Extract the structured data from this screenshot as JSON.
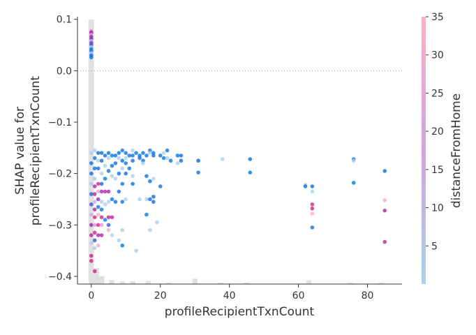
{
  "chart_data": {
    "type": "scatter",
    "title": "",
    "xlabel": "profileRecipientTxnCount",
    "ylabel_lines": [
      "SHAP value for",
      "profileRecipientTxnCount"
    ],
    "xlim": [
      -4,
      90
    ],
    "ylim": [
      -0.415,
      0.105
    ],
    "x_ticks": [
      0,
      20,
      40,
      60,
      80
    ],
    "y_ticks": [
      0.1,
      0.0,
      -0.1,
      -0.2,
      -0.3,
      -0.4
    ],
    "y_tick_labels": [
      "0.1",
      "0.0",
      "−0.1",
      "−0.2",
      "−0.3",
      "−0.4"
    ],
    "zero_line": 0.0,
    "color_feature": "distanceFromHome",
    "colorbar": {
      "label": "distanceFromHome",
      "range": [
        0,
        35
      ],
      "ticks": [
        5,
        10,
        15,
        20,
        25,
        30,
        35
      ],
      "colors": [
        "#a6d2f0",
        "#d3a2e0",
        "#ffb0c8"
      ]
    },
    "histogram": {
      "bin_width": 1.5,
      "bins": [
        {
          "x": 0,
          "count": 100
        },
        {
          "x": 1.5,
          "count": 6
        },
        {
          "x": 3,
          "count": 3
        },
        {
          "x": 6,
          "count": 1.5
        },
        {
          "x": 9,
          "count": 1
        },
        {
          "x": 12,
          "count": 1
        },
        {
          "x": 16.5,
          "count": 1.2
        },
        {
          "x": 22.5,
          "count": 0.5
        },
        {
          "x": 30,
          "count": 2
        },
        {
          "x": 37.5,
          "count": 0.5
        },
        {
          "x": 45,
          "count": 0.5
        },
        {
          "x": 63,
          "count": 1.5
        },
        {
          "x": 75,
          "count": 0.5
        },
        {
          "x": 84,
          "count": 0.5
        }
      ]
    },
    "series": [
      {
        "x": 0,
        "y": 0.078,
        "c": 22
      },
      {
        "x": 0,
        "y": 0.075,
        "c": 25
      },
      {
        "x": 0,
        "y": 0.072,
        "c": 20
      },
      {
        "x": 0,
        "y": 0.07,
        "c": 27
      },
      {
        "x": 0,
        "y": 0.066,
        "c": 18
      },
      {
        "x": 0,
        "y": 0.062,
        "c": 15
      },
      {
        "x": 0,
        "y": 0.058,
        "c": 12
      },
      {
        "x": 0,
        "y": 0.054,
        "c": 10
      },
      {
        "x": 0,
        "y": 0.05,
        "c": 6
      },
      {
        "x": 0,
        "y": 0.046,
        "c": 3
      },
      {
        "x": 0,
        "y": 0.042,
        "c": 2
      },
      {
        "x": 0,
        "y": 0.038,
        "c": 1
      },
      {
        "x": 0,
        "y": 0.034,
        "c": 1
      },
      {
        "x": 0,
        "y": 0.03,
        "c": 2
      },
      {
        "x": 0,
        "y": 0.026,
        "c": 1
      },
      {
        "x": 0,
        "y": -0.16,
        "c": 1
      },
      {
        "x": 0,
        "y": -0.18,
        "c": 2
      },
      {
        "x": 0,
        "y": -0.2,
        "c": 1
      },
      {
        "x": 0,
        "y": -0.22,
        "c": 3
      },
      {
        "x": 0,
        "y": -0.24,
        "c": 5
      },
      {
        "x": 0,
        "y": -0.26,
        "c": 8
      },
      {
        "x": 0,
        "y": -0.28,
        "c": 12
      },
      {
        "x": 0,
        "y": -0.3,
        "c": 20
      },
      {
        "x": 0,
        "y": -0.32,
        "c": 25
      },
      {
        "x": 0,
        "y": -0.335,
        "c": 1
      },
      {
        "x": 0,
        "y": -0.36,
        "c": 30
      },
      {
        "x": 0,
        "y": -0.37,
        "c": 34
      },
      {
        "x": 1,
        "y": -0.155,
        "c": 1
      },
      {
        "x": 1,
        "y": -0.17,
        "c": 2
      },
      {
        "x": 1,
        "y": -0.19,
        "c": 1
      },
      {
        "x": 1,
        "y": -0.21,
        "c": 4
      },
      {
        "x": 1,
        "y": -0.225,
        "c": 22
      },
      {
        "x": 1,
        "y": -0.24,
        "c": 28
      },
      {
        "x": 1,
        "y": -0.255,
        "c": 12
      },
      {
        "x": 1,
        "y": -0.27,
        "c": 26
      },
      {
        "x": 1,
        "y": -0.285,
        "c": 33
      },
      {
        "x": 1,
        "y": -0.3,
        "c": 18
      },
      {
        "x": 1,
        "y": -0.315,
        "c": 30
      },
      {
        "x": 1,
        "y": -0.33,
        "c": 8
      },
      {
        "x": 1,
        "y": -0.345,
        "c": 2
      },
      {
        "x": 1,
        "y": -0.39,
        "c": 32
      },
      {
        "x": 2,
        "y": -0.16,
        "c": 2
      },
      {
        "x": 2,
        "y": -0.175,
        "c": 1
      },
      {
        "x": 2,
        "y": -0.19,
        "c": 3
      },
      {
        "x": 2,
        "y": -0.22,
        "c": 34
      },
      {
        "x": 2,
        "y": -0.235,
        "c": 25
      },
      {
        "x": 2,
        "y": -0.25,
        "c": 14
      },
      {
        "x": 2,
        "y": -0.265,
        "c": 2
      },
      {
        "x": 2,
        "y": -0.28,
        "c": 29
      },
      {
        "x": 2,
        "y": -0.3,
        "c": 35
      },
      {
        "x": 2,
        "y": -0.32,
        "c": 22
      },
      {
        "x": 2,
        "y": -0.34,
        "c": 30
      },
      {
        "x": 3,
        "y": -0.16,
        "c": 1
      },
      {
        "x": 3,
        "y": -0.175,
        "c": 3
      },
      {
        "x": 3,
        "y": -0.2,
        "c": 2
      },
      {
        "x": 3,
        "y": -0.22,
        "c": 2
      },
      {
        "x": 3,
        "y": -0.235,
        "c": 20
      },
      {
        "x": 3,
        "y": -0.255,
        "c": 1
      },
      {
        "x": 3,
        "y": -0.27,
        "c": 1
      },
      {
        "x": 3,
        "y": -0.285,
        "c": 32
      },
      {
        "x": 3,
        "y": -0.3,
        "c": 18
      },
      {
        "x": 3,
        "y": -0.32,
        "c": 27
      },
      {
        "x": 4,
        "y": -0.165,
        "c": 2
      },
      {
        "x": 4,
        "y": -0.185,
        "c": 1
      },
      {
        "x": 4,
        "y": -0.21,
        "c": 1
      },
      {
        "x": 4,
        "y": -0.235,
        "c": 24
      },
      {
        "x": 4,
        "y": -0.26,
        "c": 3
      },
      {
        "x": 4,
        "y": -0.29,
        "c": 1
      },
      {
        "x": 5,
        "y": -0.16,
        "c": 1
      },
      {
        "x": 5,
        "y": -0.17,
        "c": 2
      },
      {
        "x": 5,
        "y": -0.195,
        "c": 1
      },
      {
        "x": 5,
        "y": -0.235,
        "c": 21
      },
      {
        "x": 5,
        "y": -0.255,
        "c": 1
      },
      {
        "x": 5,
        "y": -0.285,
        "c": 28
      },
      {
        "x": 5,
        "y": -0.3,
        "c": 3
      },
      {
        "x": 5,
        "y": -0.31,
        "c": 30
      },
      {
        "x": 6,
        "y": -0.165,
        "c": 1
      },
      {
        "x": 6,
        "y": -0.185,
        "c": 2
      },
      {
        "x": 6,
        "y": -0.205,
        "c": 1
      },
      {
        "x": 6,
        "y": -0.25,
        "c": 2
      },
      {
        "x": 6,
        "y": -0.285,
        "c": 26
      },
      {
        "x": 6,
        "y": -0.32,
        "c": 1
      },
      {
        "x": 7,
        "y": -0.165,
        "c": 1
      },
      {
        "x": 7,
        "y": -0.18,
        "c": 1
      },
      {
        "x": 7,
        "y": -0.21,
        "c": 2
      },
      {
        "x": 7,
        "y": -0.255,
        "c": 1
      },
      {
        "x": 8,
        "y": -0.16,
        "c": 1
      },
      {
        "x": 8,
        "y": -0.17,
        "c": 2
      },
      {
        "x": 8,
        "y": -0.2,
        "c": 1
      },
      {
        "x": 8,
        "y": -0.235,
        "c": 3
      },
      {
        "x": 8,
        "y": -0.33,
        "c": 2
      },
      {
        "x": 9,
        "y": -0.155,
        "c": 1
      },
      {
        "x": 9,
        "y": -0.175,
        "c": 1
      },
      {
        "x": 9,
        "y": -0.19,
        "c": 2
      },
      {
        "x": 9,
        "y": -0.22,
        "c": 1
      },
      {
        "x": 9,
        "y": -0.255,
        "c": 2
      },
      {
        "x": 9,
        "y": -0.31,
        "c": 3
      },
      {
        "x": 9,
        "y": -0.34,
        "c": 1
      },
      {
        "x": 10,
        "y": -0.16,
        "c": 1
      },
      {
        "x": 10,
        "y": -0.17,
        "c": 1
      },
      {
        "x": 10,
        "y": -0.18,
        "c": 2
      },
      {
        "x": 10,
        "y": -0.2,
        "c": 3
      },
      {
        "x": 10,
        "y": -0.25,
        "c": 1
      },
      {
        "x": 11,
        "y": -0.165,
        "c": 2
      },
      {
        "x": 11,
        "y": -0.19,
        "c": 1
      },
      {
        "x": 12,
        "y": -0.155,
        "c": 1
      },
      {
        "x": 12,
        "y": -0.165,
        "c": 1
      },
      {
        "x": 12,
        "y": -0.175,
        "c": 2
      },
      {
        "x": 12,
        "y": -0.205,
        "c": 1
      },
      {
        "x": 12,
        "y": -0.22,
        "c": 2
      },
      {
        "x": 13,
        "y": -0.16,
        "c": 1
      },
      {
        "x": 13,
        "y": -0.35,
        "c": 2
      },
      {
        "x": 14,
        "y": -0.165,
        "c": 1
      },
      {
        "x": 14,
        "y": -0.17,
        "c": 2
      },
      {
        "x": 14,
        "y": -0.25,
        "c": 1
      },
      {
        "x": 15,
        "y": -0.16,
        "c": 1
      },
      {
        "x": 15,
        "y": -0.175,
        "c": 1
      },
      {
        "x": 15,
        "y": -0.18,
        "c": 2
      },
      {
        "x": 16,
        "y": -0.165,
        "c": 1
      },
      {
        "x": 16,
        "y": -0.205,
        "c": 2
      },
      {
        "x": 16,
        "y": -0.25,
        "c": 1
      },
      {
        "x": 16,
        "y": -0.28,
        "c": 1
      },
      {
        "x": 17,
        "y": -0.155,
        "c": 1
      },
      {
        "x": 17,
        "y": -0.16,
        "c": 1
      },
      {
        "x": 17,
        "y": -0.215,
        "c": 1
      },
      {
        "x": 17,
        "y": -0.25,
        "c": 2
      },
      {
        "x": 17,
        "y": -0.31,
        "c": 2
      },
      {
        "x": 18,
        "y": -0.16,
        "c": 1
      },
      {
        "x": 18,
        "y": -0.165,
        "c": 2
      },
      {
        "x": 18,
        "y": -0.21,
        "c": 1
      },
      {
        "x": 18,
        "y": -0.245,
        "c": 1
      },
      {
        "x": 18,
        "y": -0.255,
        "c": 3
      },
      {
        "x": 19,
        "y": -0.295,
        "c": 2
      },
      {
        "x": 20,
        "y": -0.165,
        "c": 1
      },
      {
        "x": 20,
        "y": -0.225,
        "c": 2
      },
      {
        "x": 21,
        "y": -0.16,
        "c": 1
      },
      {
        "x": 21,
        "y": -0.17,
        "c": 2
      },
      {
        "x": 22,
        "y": -0.155,
        "c": 1
      },
      {
        "x": 22,
        "y": -0.17,
        "c": 1
      },
      {
        "x": 23,
        "y": -0.175,
        "c": 2
      },
      {
        "x": 25,
        "y": -0.165,
        "c": 1
      },
      {
        "x": 25,
        "y": -0.18,
        "c": 1
      },
      {
        "x": 26,
        "y": -0.165,
        "c": 2
      },
      {
        "x": 26,
        "y": -0.175,
        "c": 1
      },
      {
        "x": 31,
        "y": -0.175,
        "c": 1
      },
      {
        "x": 31,
        "y": -0.175,
        "c": 2
      },
      {
        "x": 31,
        "y": -0.198,
        "c": 1
      },
      {
        "x": 38,
        "y": -0.172,
        "c": 1
      },
      {
        "x": 46,
        "y": -0.172,
        "c": 2
      },
      {
        "x": 46,
        "y": -0.198,
        "c": 1
      },
      {
        "x": 62,
        "y": -0.222,
        "c": 2
      },
      {
        "x": 62,
        "y": -0.225,
        "c": 1
      },
      {
        "x": 64,
        "y": -0.225,
        "c": 1
      },
      {
        "x": 64,
        "y": -0.235,
        "c": 1
      },
      {
        "x": 64,
        "y": -0.26,
        "c": 33
      },
      {
        "x": 64,
        "y": -0.268,
        "c": 31
      },
      {
        "x": 64,
        "y": -0.278,
        "c": 34
      },
      {
        "x": 64,
        "y": -0.305,
        "c": 2
      },
      {
        "x": 76,
        "y": -0.172,
        "c": 1
      },
      {
        "x": 76,
        "y": -0.175,
        "c": 2
      },
      {
        "x": 76,
        "y": -0.218,
        "c": 1
      },
      {
        "x": 85,
        "y": -0.195,
        "c": 2
      },
      {
        "x": 85,
        "y": -0.252,
        "c": 29
      },
      {
        "x": 85,
        "y": -0.272,
        "c": 22
      },
      {
        "x": 85,
        "y": -0.333,
        "c": 27
      }
    ]
  }
}
